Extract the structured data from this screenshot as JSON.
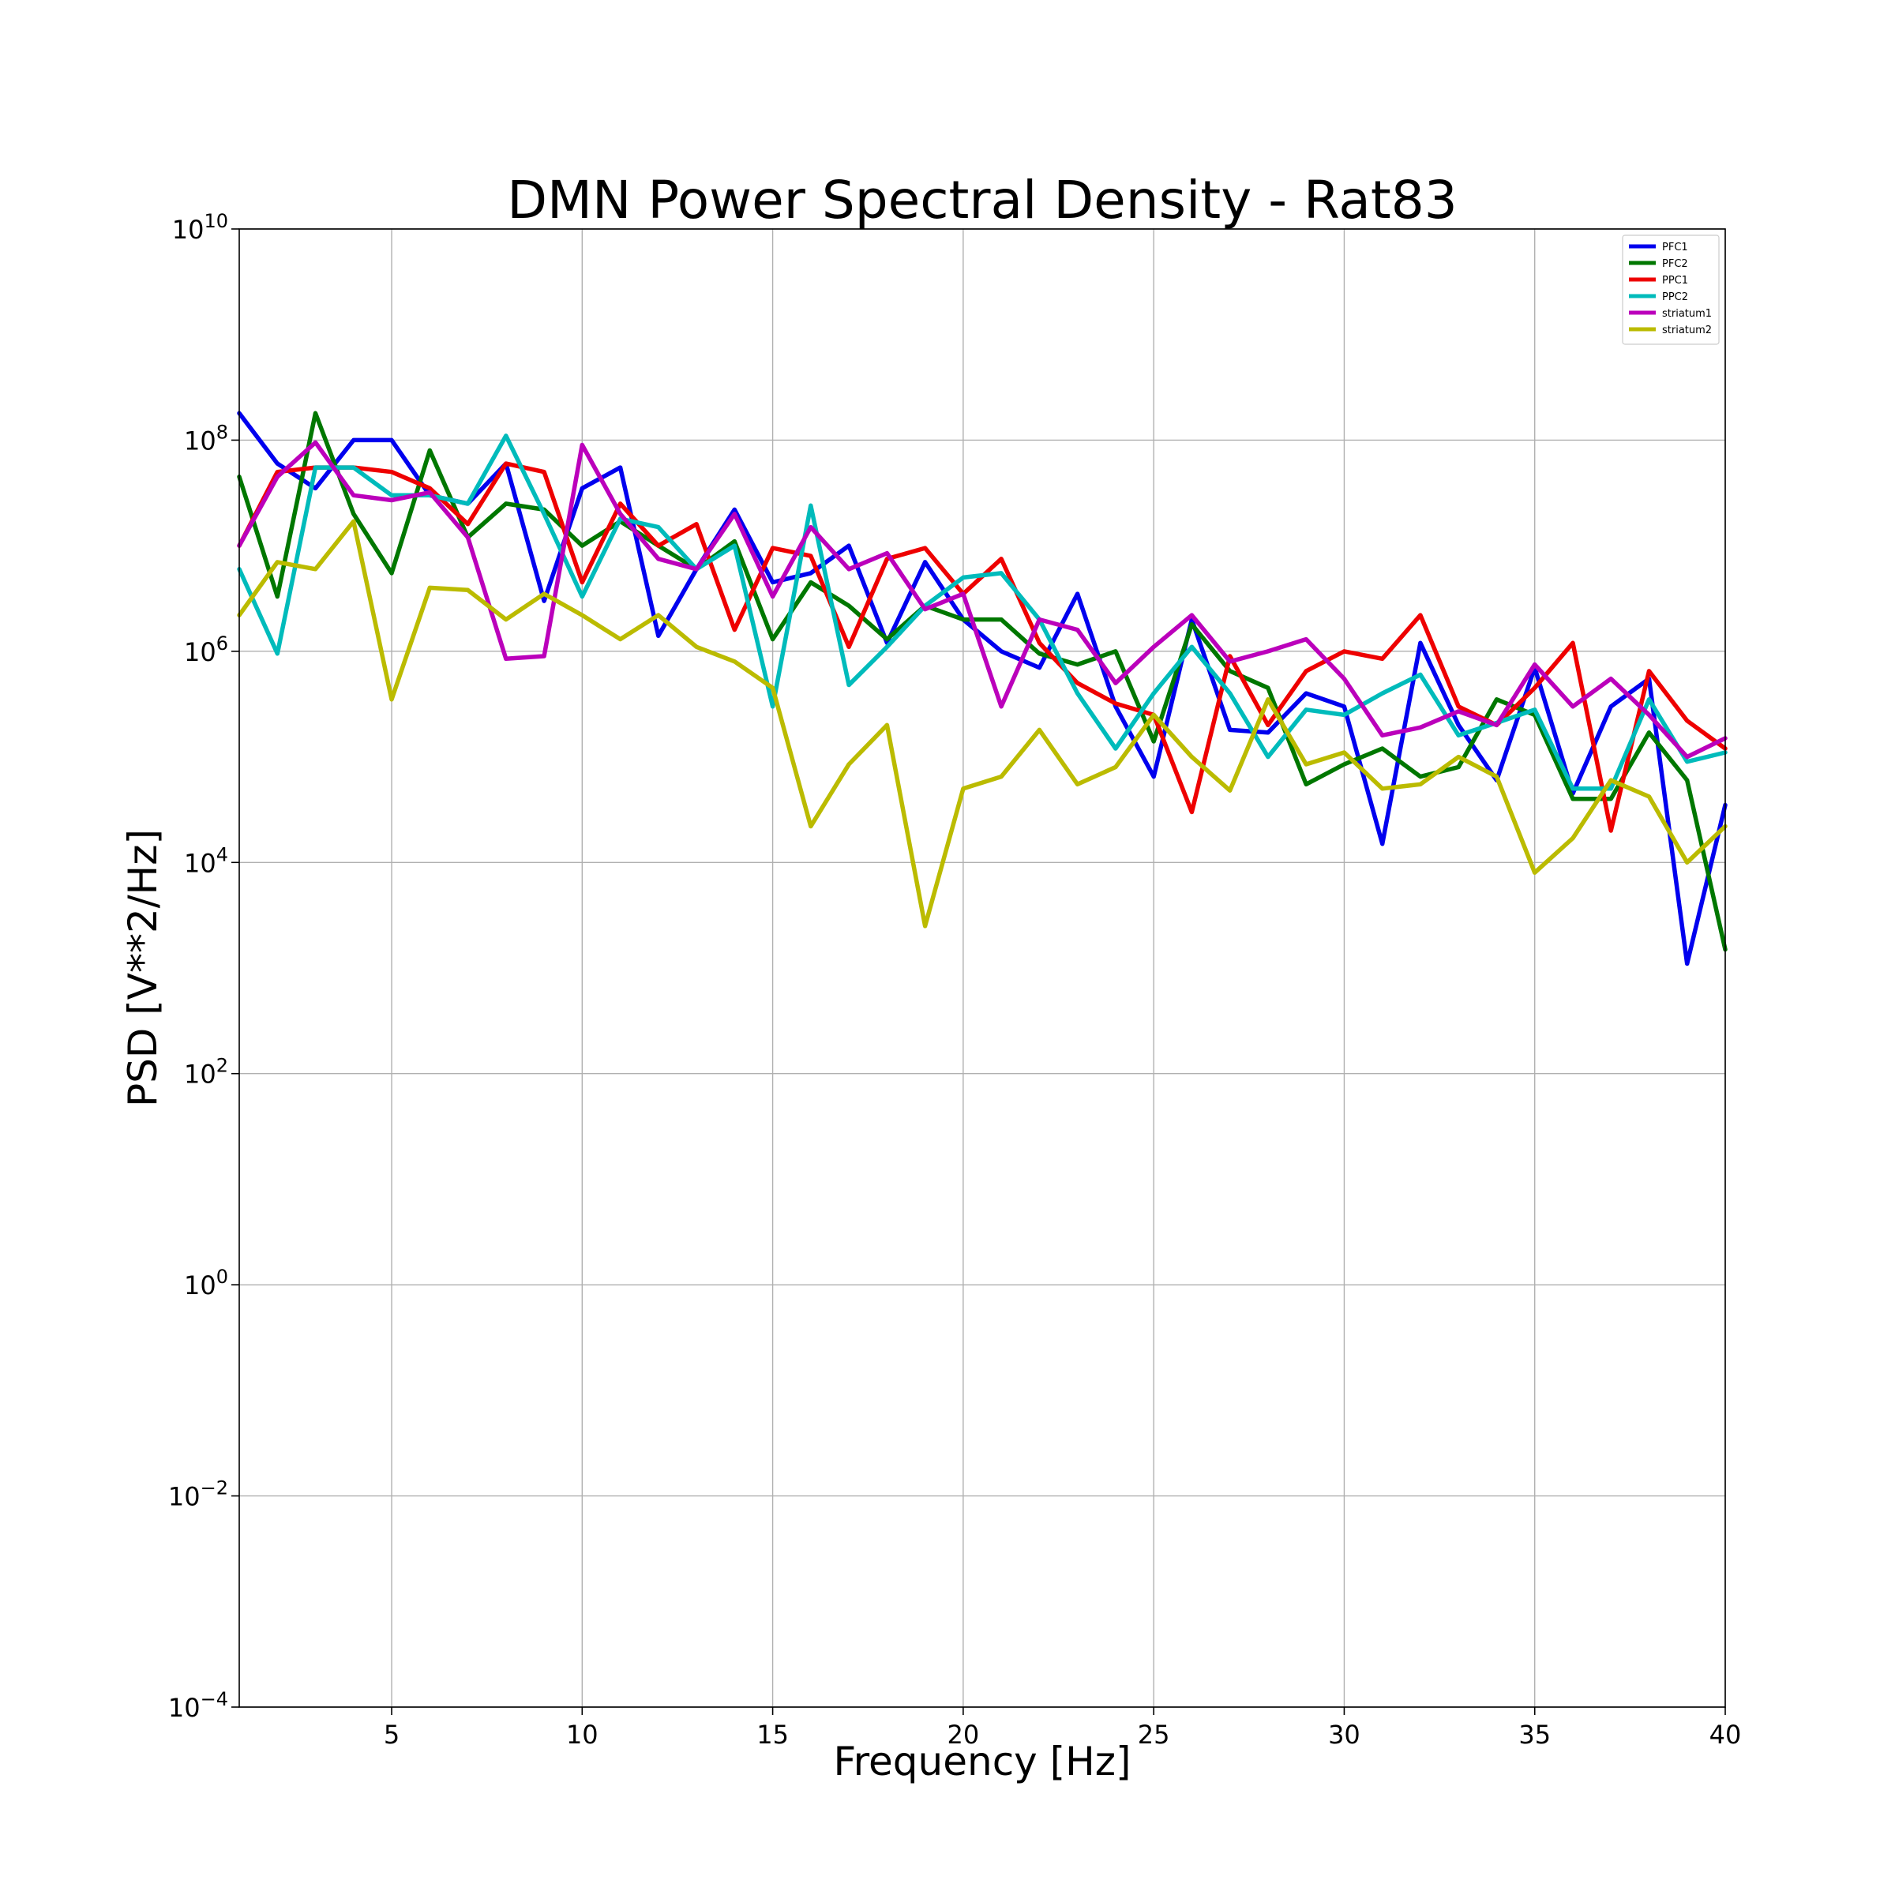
{
  "chart_data": {
    "type": "line",
    "title": "DMN Power Spectral Density - Rat83",
    "xlabel": "Frequency [Hz]",
    "ylabel": "PSD [V**2/Hz]",
    "xlim": [
      1,
      40
    ],
    "ylim": [
      0.0001,
      10000000000
    ],
    "yscale": "log",
    "grid": true,
    "legend_position": "top-right",
    "x_ticks": [
      5,
      10,
      15,
      20,
      25,
      30,
      35,
      40
    ],
    "y_ticks": [
      {
        "base": "10",
        "exp": "10",
        "value": 10000000000
      },
      {
        "base": "10",
        "exp": "8",
        "value": 100000000
      },
      {
        "base": "10",
        "exp": "6",
        "value": 1000000
      },
      {
        "base": "10",
        "exp": "4",
        "value": 10000
      },
      {
        "base": "10",
        "exp": "2",
        "value": 100
      },
      {
        "base": "10",
        "exp": "0",
        "value": 1
      },
      {
        "base": "10",
        "exp": "−2",
        "value": 0.01
      },
      {
        "base": "10",
        "exp": "−4",
        "value": 0.0001
      }
    ],
    "x": [
      1,
      2,
      3,
      4,
      5,
      6,
      7,
      8,
      9,
      10,
      11,
      12,
      13,
      14,
      15,
      16,
      17,
      18,
      19,
      20,
      21,
      22,
      23,
      24,
      25,
      26,
      27,
      28,
      29,
      30,
      31,
      32,
      33,
      34,
      35,
      36,
      37,
      38,
      39,
      40
    ],
    "series": [
      {
        "name": "PFC1",
        "color": "#0000ee",
        "values": [
          180000000.0,
          60000000.0,
          35000000.0,
          100000000.0,
          100000000.0,
          30000000.0,
          25000000.0,
          60000000.0,
          3000000.0,
          35000000.0,
          55000000.0,
          1400000.0,
          6000000.0,
          22000000.0,
          4500000.0,
          5500000.0,
          10000000.0,
          1200000.0,
          7000000.0,
          2000000.0,
          1000000.0,
          700000.0,
          3500000.0,
          300000.0,
          65000.0,
          2000000.0,
          180000.0,
          170000.0,
          400000.0,
          300000.0,
          15000.0,
          1200000.0,
          200000.0,
          60000.0,
          700000.0,
          45000.0,
          300000.0,
          550000.0,
          1100.0,
          35000.0
        ]
      },
      {
        "name": "PFC2",
        "color": "#007700",
        "values": [
          45000000.0,
          3300000.0,
          180000000.0,
          20000000.0,
          5500000.0,
          80000000.0,
          12000000.0,
          25000000.0,
          22000000.0,
          10000000.0,
          17000000.0,
          10000000.0,
          6000000.0,
          11000000.0,
          1300000.0,
          4500000.0,
          2700000.0,
          1300000.0,
          2700000.0,
          2000000.0,
          2000000.0,
          950000.0,
          750000.0,
          1000000.0,
          140000.0,
          1800000.0,
          650000.0,
          450000.0,
          55000.0,
          85000.0,
          120000.0,
          65000.0,
          80000.0,
          350000.0,
          250000.0,
          40000.0,
          40000.0,
          170000.0,
          60000.0,
          1500.0
        ]
      },
      {
        "name": "PPC1",
        "color": "#ee0000",
        "values": [
          10000000.0,
          50000000.0,
          55000000.0,
          55000000.0,
          50000000.0,
          35000000.0,
          16000000.0,
          60000000.0,
          50000000.0,
          4500000.0,
          25000000.0,
          10000000.0,
          16000000.0,
          1600000.0,
          9500000.0,
          8000000.0,
          1100000.0,
          7500000.0,
          9500000.0,
          3500000.0,
          7500000.0,
          1200000.0,
          500000.0,
          320000.0,
          250000.0,
          30000.0,
          900000.0,
          200000.0,
          650000.0,
          1000000.0,
          850000.0,
          2200000.0,
          300000.0,
          200000.0,
          450000.0,
          1200000.0,
          20000.0,
          650000.0,
          220000.0,
          120000.0
        ]
      },
      {
        "name": "PPC2",
        "color": "#00bbbb",
        "values": [
          6000000.0,
          950000.0,
          55000000.0,
          55000000.0,
          30000000.0,
          30000000.0,
          25000000.0,
          110000000.0,
          20000000.0,
          3300000.0,
          18000000.0,
          15000000.0,
          6000000.0,
          10000000.0,
          300000.0,
          24000000.0,
          480000.0,
          1100000.0,
          2700000.0,
          5000000.0,
          5500000.0,
          2000000.0,
          400000.0,
          120000.0,
          400000.0,
          1100000.0,
          400000.0,
          100000.0,
          280000.0,
          250000.0,
          400000.0,
          600000.0,
          160000.0,
          210000.0,
          280000.0,
          50000.0,
          50000.0,
          350000.0,
          90000.0,
          110000.0
        ]
      },
      {
        "name": "striatum1",
        "color": "#bb00bb",
        "values": [
          10000000.0,
          45000000.0,
          95000000.0,
          30000000.0,
          27000000.0,
          32000000.0,
          12000000.0,
          850000.0,
          900000.0,
          90000000.0,
          20000000.0,
          7500000.0,
          6000000.0,
          20000000.0,
          3300000.0,
          15000000.0,
          6000000.0,
          8500000.0,
          2500000.0,
          3500000.0,
          300000.0,
          2000000.0,
          1600000.0,
          500000.0,
          1100000.0,
          2200000.0,
          800000.0,
          1000000.0,
          1300000.0,
          550000.0,
          160000.0,
          190000.0,
          270000.0,
          200000.0,
          750000.0,
          300000.0,
          550000.0,
          250000.0,
          100000.0,
          150000.0
        ]
      },
      {
        "name": "striatum2",
        "color": "#bbbb00",
        "values": [
          2200000.0,
          7000000.0,
          6000000.0,
          17000000.0,
          350000.0,
          4000000.0,
          3800000.0,
          2000000.0,
          3500000.0,
          2200000.0,
          1300000.0,
          2200000.0,
          1100000.0,
          800000.0,
          450000.0,
          22000.0,
          85000.0,
          200000.0,
          2500.0,
          50000.0,
          65000.0,
          180000.0,
          55000.0,
          80000.0,
          250000.0,
          100000.0,
          48000.0,
          350000.0,
          85000.0,
          110000.0,
          50000.0,
          55000.0,
          100000.0,
          65000.0,
          8000.0,
          17000.0,
          60000.0,
          42000.0,
          10000.0,
          22000.0
        ]
      }
    ]
  }
}
